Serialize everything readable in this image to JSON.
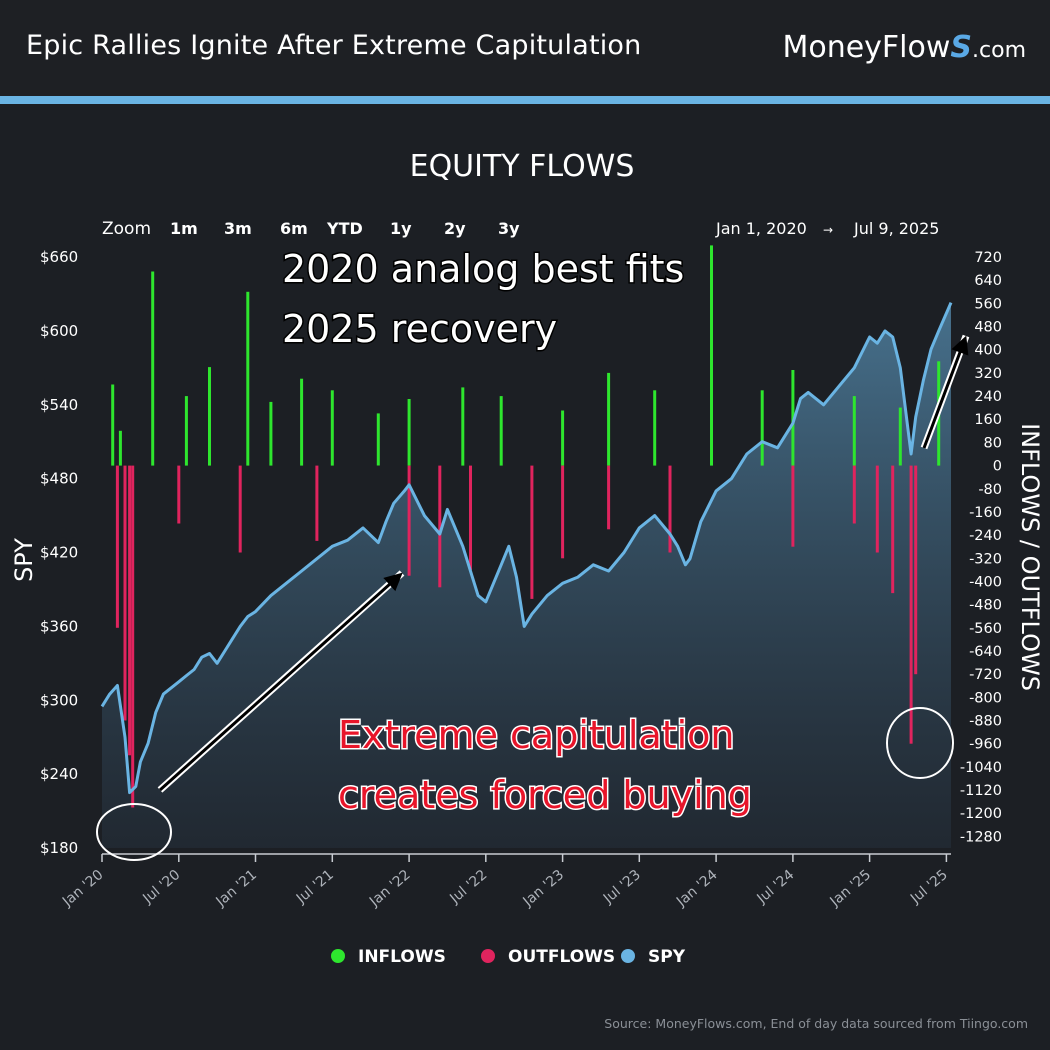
{
  "header": {
    "title": "Epic Rallies Ignite After Extreme Capitulation",
    "brand_main": "MoneyFlow",
    "brand_s": "S",
    "brand_suffix": ".com"
  },
  "toolbar": {
    "zoom_label": "Zoom",
    "zoom_options": [
      "1m",
      "3m",
      "6m",
      "YTD",
      "1y",
      "2y",
      "3y"
    ],
    "range_start": "Jan 1, 2020",
    "range_arrow": "→",
    "range_end": "Jul 9, 2025"
  },
  "source_note": "Source: MoneyFlows.com, End of day data sourced from Tiingo.com",
  "colors": {
    "inflows": "#2ee62e",
    "outflows": "#e0245e",
    "spy": "#6ab4e3",
    "annotation_red": "#e8152a"
  },
  "chart_data": {
    "type": "bar",
    "title": "EQUITY FLOWS",
    "ylabel_left": "SPY",
    "ylabel_right": "INFLOWS / OUTFLOWS",
    "y_left_ticks": [
      "$660",
      "$600",
      "$540",
      "$480",
      "$420",
      "$360",
      "$300",
      "$240",
      "$180"
    ],
    "y_left_range": [
      180,
      660
    ],
    "y_right_ticks": [
      "720",
      "640",
      "560",
      "480",
      "400",
      "320",
      "240",
      "160",
      "80",
      "0",
      "-80",
      "-160",
      "-240",
      "-320",
      "-400",
      "-480",
      "-560",
      "-640",
      "-720",
      "-800",
      "-880",
      "-960",
      "-1040",
      "-1120",
      "-1200",
      "-1280"
    ],
    "y_right_range": [
      -1320,
      720
    ],
    "x_ticks": [
      "Jan '20",
      "Jul '20",
      "Jan '21",
      "Jul '21",
      "Jan '22",
      "Jul '22",
      "Jan '23",
      "Jul '23",
      "Jan '24",
      "Jul '24",
      "Jan '25",
      "Jul '25"
    ],
    "x_range": [
      2020.0,
      2025.53
    ],
    "legend": [
      {
        "name": "INFLOWS",
        "color": "#2ee62e"
      },
      {
        "name": "OUTFLOWS",
        "color": "#e0245e"
      },
      {
        "name": "SPY",
        "color": "#6ab4e3"
      }
    ],
    "legend_position": "bottom",
    "series": [
      {
        "name": "SPY",
        "x": [
          2020.0,
          2020.05,
          2020.1,
          2020.15,
          2020.18,
          2020.22,
          2020.25,
          2020.3,
          2020.35,
          2020.4,
          2020.45,
          2020.5,
          2020.55,
          2020.6,
          2020.65,
          2020.7,
          2020.75,
          2020.8,
          2020.85,
          2020.9,
          2020.95,
          2021.0,
          2021.1,
          2021.2,
          2021.3,
          2021.4,
          2021.5,
          2021.6,
          2021.7,
          2021.8,
          2021.85,
          2021.9,
          2021.97,
          2022.0,
          2022.1,
          2022.2,
          2022.25,
          2022.35,
          2022.45,
          2022.5,
          2022.55,
          2022.6,
          2022.65,
          2022.7,
          2022.75,
          2022.8,
          2022.9,
          2023.0,
          2023.1,
          2023.2,
          2023.3,
          2023.4,
          2023.5,
          2023.6,
          2023.7,
          2023.75,
          2023.8,
          2023.83,
          2023.9,
          2024.0,
          2024.1,
          2024.2,
          2024.3,
          2024.4,
          2024.5,
          2024.55,
          2024.6,
          2024.7,
          2024.8,
          2024.9,
          2025.0,
          2025.05,
          2025.1,
          2025.15,
          2025.2,
          2025.25,
          2025.27,
          2025.3,
          2025.35,
          2025.4,
          2025.45,
          2025.53
        ],
        "y": [
          295,
          305,
          312,
          270,
          225,
          230,
          250,
          265,
          290,
          305,
          310,
          315,
          320,
          325,
          335,
          338,
          330,
          340,
          350,
          360,
          368,
          372,
          385,
          395,
          405,
          415,
          425,
          430,
          440,
          428,
          445,
          460,
          470,
          475,
          450,
          435,
          455,
          425,
          385,
          380,
          395,
          410,
          425,
          400,
          360,
          370,
          385,
          395,
          400,
          410,
          405,
          420,
          440,
          450,
          435,
          425,
          410,
          415,
          445,
          470,
          480,
          500,
          510,
          505,
          525,
          545,
          550,
          540,
          555,
          570,
          595,
          590,
          600,
          595,
          570,
          520,
          500,
          530,
          560,
          585,
          600,
          623
        ]
      },
      {
        "name": "INFLOWS",
        "x": [
          2020.07,
          2020.12,
          2020.33,
          2020.55,
          2020.7,
          2020.95,
          2021.1,
          2021.3,
          2021.5,
          2021.8,
          2022.0,
          2022.35,
          2022.6,
          2023.0,
          2023.3,
          2023.6,
          2023.97,
          2024.3,
          2024.5,
          2024.9,
          2025.2,
          2025.45
        ],
        "y": [
          280,
          120,
          670,
          240,
          340,
          600,
          220,
          300,
          260,
          180,
          230,
          270,
          240,
          190,
          320,
          260,
          760,
          260,
          330,
          240,
          200,
          360
        ]
      },
      {
        "name": "OUTFLOWS",
        "x": [
          2020.1,
          2020.15,
          2020.18,
          2020.2,
          2020.5,
          2020.9,
          2021.4,
          2022.0,
          2022.2,
          2022.4,
          2022.8,
          2023.0,
          2023.3,
          2023.7,
          2024.5,
          2024.9,
          2025.05,
          2025.15,
          2025.27,
          2025.3
        ],
        "y": [
          -560,
          -880,
          -1000,
          -1180,
          -200,
          -300,
          -260,
          -380,
          -420,
          -360,
          -460,
          -320,
          -220,
          -300,
          -280,
          -200,
          -300,
          -440,
          -960,
          -720
        ]
      }
    ],
    "annotations": [
      {
        "text_lines": [
          "2020 analog best fits",
          "2025 recovery"
        ],
        "color": "#ffffff"
      },
      {
        "text_lines": [
          "Extreme capitulation",
          "creates forced buying"
        ],
        "color": "#e8152a"
      }
    ]
  }
}
